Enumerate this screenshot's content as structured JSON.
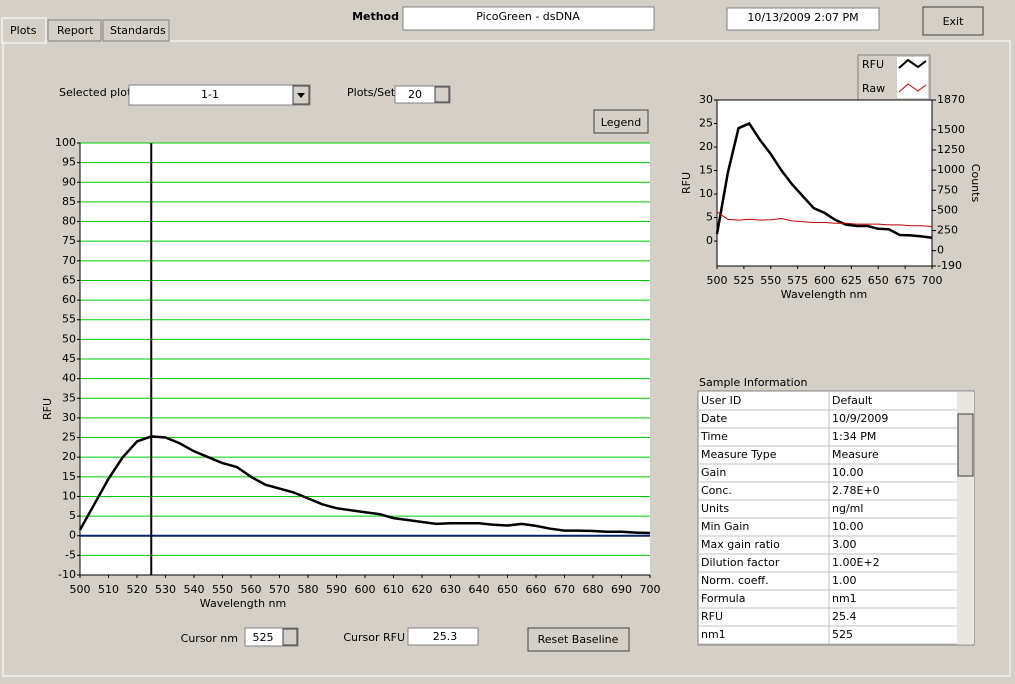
{
  "tabs": [
    "Plots",
    "Report",
    "Standards"
  ],
  "header": {
    "method_label": "Method",
    "method": "PicoGreen - dsDNA",
    "datetime": "10/13/2009  2:07 PM",
    "exit": "Exit"
  },
  "controls": {
    "selected_plot_label": "Selected plot",
    "selected_plot": "1-1",
    "plots_per_set_label": "Plots/Set",
    "plots_per_set": "20",
    "legend_button": "Legend",
    "cursor_nm_label": "Cursor nm",
    "cursor_rfu_label": "Cursor RFU",
    "reset_baseline": "Reset Baseline"
  },
  "chart_data": [
    {
      "type": "line",
      "x_label": "Wavelength nm",
      "y_label": "RFU",
      "x": [
        500,
        505,
        510,
        515,
        520,
        525,
        530,
        535,
        540,
        545,
        550,
        555,
        560,
        565,
        570,
        575,
        580,
        585,
        590,
        595,
        600,
        605,
        610,
        615,
        620,
        625,
        630,
        635,
        640,
        645,
        650,
        655,
        660,
        665,
        670,
        675,
        680,
        685,
        690,
        695,
        700
      ],
      "series": [
        {
          "name": "RFU",
          "color": "#000000",
          "values": [
            1.5,
            8,
            14.5,
            20,
            24,
            25.3,
            25,
            23.5,
            21.5,
            20,
            18.5,
            17.5,
            15,
            13,
            12,
            11,
            9.5,
            8,
            7,
            6.5,
            6,
            5.5,
            4.5,
            4,
            3.5,
            3,
            3.2,
            3.2,
            3.2,
            2.8,
            2.6,
            3,
            2.5,
            1.8,
            1.3,
            1.3,
            1.2,
            1,
            1,
            0.8,
            0.7
          ]
        }
      ],
      "xlim": [
        500,
        700
      ],
      "xticks": [
        500,
        510,
        520,
        530,
        540,
        550,
        560,
        570,
        580,
        590,
        600,
        610,
        620,
        630,
        640,
        650,
        660,
        670,
        680,
        690,
        700
      ],
      "ylim": [
        -10,
        100
      ],
      "yticks": [
        -10,
        -5,
        0,
        5,
        10,
        15,
        20,
        25,
        30,
        35,
        40,
        45,
        50,
        55,
        60,
        65,
        70,
        75,
        80,
        85,
        90,
        95,
        100
      ],
      "grid": true,
      "grid_color": "#00cc00",
      "cursor": "525",
      "cursor_value": "25.3",
      "baseline": 0,
      "baseline_color": "#0a246a"
    },
    {
      "type": "line",
      "x_label": "Wavelength  nm",
      "y_label": "RFU",
      "y2_label": "Counts",
      "x": [
        500,
        510,
        520,
        530,
        540,
        550,
        560,
        570,
        580,
        590,
        600,
        610,
        620,
        630,
        640,
        650,
        660,
        670,
        680,
        690,
        700
      ],
      "series": [
        {
          "name": "RFU",
          "color": "#000000",
          "values": [
            1.5,
            14.5,
            24,
            25,
            21.5,
            18.5,
            15,
            12,
            9.5,
            7,
            6,
            4.5,
            3.5,
            3.2,
            3.2,
            2.6,
            2.5,
            1.3,
            1.2,
            1,
            0.7
          ]
        },
        {
          "name": "Raw",
          "color": "#c00000",
          "axis": "y2",
          "values": [
            480,
            390,
            380,
            390,
            380,
            385,
            400,
            370,
            360,
            350,
            350,
            340,
            340,
            330,
            330,
            330,
            320,
            320,
            310,
            310,
            300
          ]
        }
      ],
      "xlim": [
        500,
        700
      ],
      "xticks": [
        500,
        525,
        550,
        575,
        600,
        625,
        650,
        675,
        700
      ],
      "ylim": [
        -5.3,
        30
      ],
      "yticks": [
        0,
        5,
        10,
        15,
        20,
        25,
        30
      ],
      "y2lim": [
        -190,
        1870
      ],
      "y2ticks": [
        -190,
        0,
        250,
        500,
        750,
        1000,
        1250,
        1500,
        1870
      ]
    }
  ],
  "sample_info": {
    "title": "Sample Information",
    "rows": [
      [
        "User ID",
        "Default"
      ],
      [
        "Date",
        "10/9/2009"
      ],
      [
        "Time",
        "1:34 PM"
      ],
      [
        "Measure Type",
        "Measure"
      ],
      [
        "Gain",
        "10.00"
      ],
      [
        "Conc.",
        "2.78E+0"
      ],
      [
        "Units",
        "ng/ml"
      ],
      [
        "Min Gain",
        "10.00"
      ],
      [
        "Max gain ratio",
        "3.00"
      ],
      [
        "Dilution factor",
        "1.00E+2"
      ],
      [
        "Norm. coeff.",
        "1.00"
      ],
      [
        "Formula",
        "nm1"
      ],
      [
        "RFU",
        "25.4"
      ],
      [
        "nm1",
        "525"
      ]
    ]
  }
}
